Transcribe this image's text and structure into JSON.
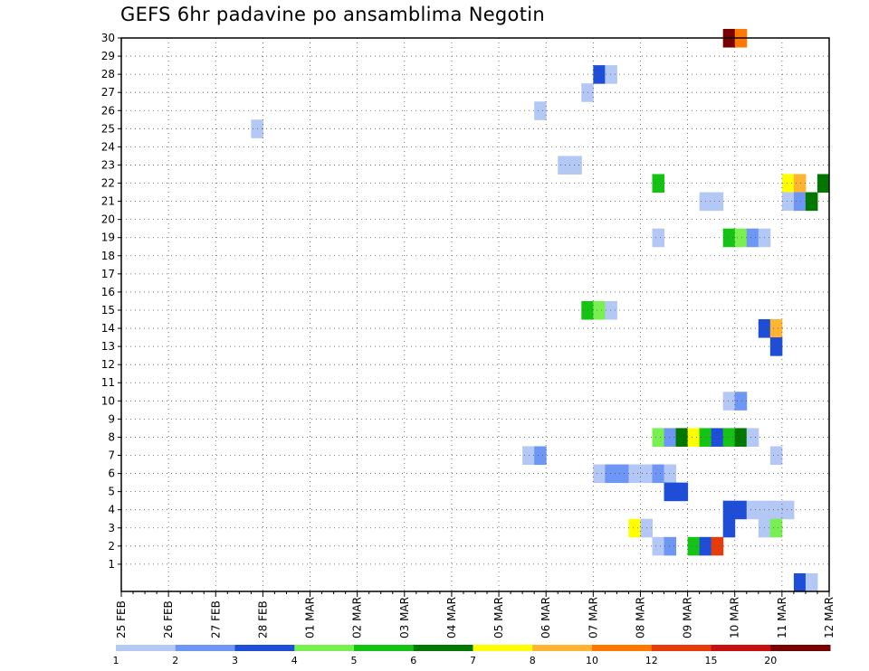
{
  "chart_data": {
    "type": "heatmap",
    "title": "GEFS 6hr padavine po ansamblima Negotin",
    "x_ticks": [
      "25 FEB",
      "26 FEB",
      "27 FEB",
      "28 FEB",
      "01 MAR",
      "02 MAR",
      "03 MAR",
      "04 MAR",
      "05 MAR",
      "06 MAR",
      "07 MAR",
      "08 MAR",
      "09 MAR",
      "10 MAR",
      "11 MAR",
      "12 MAR"
    ],
    "x_range_days": [
      0,
      15
    ],
    "y_ticks": [
      1,
      2,
      3,
      4,
      5,
      6,
      7,
      8,
      9,
      10,
      11,
      12,
      13,
      14,
      15,
      16,
      17,
      18,
      19,
      20,
      21,
      22,
      23,
      24,
      25,
      26,
      27,
      28,
      29,
      30
    ],
    "y_range": [
      0,
      30
    ],
    "grid": true,
    "colorbar": {
      "labels": [
        "1",
        "2",
        "3",
        "4",
        "5",
        "6",
        "7",
        "8",
        "10",
        "12",
        "15",
        "20"
      ],
      "colors": [
        "#b4c8f5",
        "#6e96f5",
        "#1e4ed8",
        "#78f050",
        "#14c314",
        "#007800",
        "#ffff00",
        "#ffb432",
        "#ff7800",
        "#e63c0a",
        "#c80f0f",
        "#780000"
      ]
    },
    "cells": [
      {
        "member": 30,
        "day": 12.75,
        "color": "#780000"
      },
      {
        "member": 30,
        "day": 13.0,
        "color": "#ff7800"
      },
      {
        "member": 28,
        "day": 10.0,
        "color": "#1e4ed8"
      },
      {
        "member": 28,
        "day": 10.25,
        "color": "#b4c8f5"
      },
      {
        "member": 27,
        "day": 9.75,
        "color": "#b4c8f5"
      },
      {
        "member": 26,
        "day": 8.75,
        "color": "#b4c8f5"
      },
      {
        "member": 25,
        "day": 2.75,
        "color": "#b4c8f5"
      },
      {
        "member": 23,
        "day": 9.25,
        "color": "#b4c8f5"
      },
      {
        "member": 23,
        "day": 9.5,
        "color": "#b4c8f5"
      },
      {
        "member": 22,
        "day": 11.25,
        "color": "#14c314"
      },
      {
        "member": 22,
        "day": 14.0,
        "color": "#ffff00"
      },
      {
        "member": 22,
        "day": 14.25,
        "color": "#ffb432"
      },
      {
        "member": 22,
        "day": 14.75,
        "color": "#007800"
      },
      {
        "member": 21,
        "day": 12.25,
        "color": "#b4c8f5"
      },
      {
        "member": 21,
        "day": 12.5,
        "color": "#b4c8f5"
      },
      {
        "member": 21,
        "day": 14.0,
        "color": "#b4c8f5"
      },
      {
        "member": 21,
        "day": 14.25,
        "color": "#6e96f5"
      },
      {
        "member": 21,
        "day": 14.5,
        "color": "#007800"
      },
      {
        "member": 19,
        "day": 11.25,
        "color": "#b4c8f5"
      },
      {
        "member": 19,
        "day": 12.75,
        "color": "#14c314"
      },
      {
        "member": 19,
        "day": 13.0,
        "color": "#78f050"
      },
      {
        "member": 19,
        "day": 13.25,
        "color": "#6e96f5"
      },
      {
        "member": 19,
        "day": 13.5,
        "color": "#b4c8f5"
      },
      {
        "member": 15,
        "day": 9.75,
        "color": "#14c314"
      },
      {
        "member": 15,
        "day": 10.0,
        "color": "#78f050"
      },
      {
        "member": 15,
        "day": 10.25,
        "color": "#b4c8f5"
      },
      {
        "member": 14,
        "day": 13.5,
        "color": "#1e4ed8"
      },
      {
        "member": 14,
        "day": 13.75,
        "color": "#ffb432"
      },
      {
        "member": 13,
        "day": 13.75,
        "color": "#1e4ed8"
      },
      {
        "member": 10,
        "day": 12.75,
        "color": "#b4c8f5"
      },
      {
        "member": 10,
        "day": 13.0,
        "color": "#6e96f5"
      },
      {
        "member": 8,
        "day": 11.25,
        "color": "#78f050"
      },
      {
        "member": 8,
        "day": 11.5,
        "color": "#6e96f5"
      },
      {
        "member": 8,
        "day": 11.75,
        "color": "#007800"
      },
      {
        "member": 8,
        "day": 12.0,
        "color": "#ffff00"
      },
      {
        "member": 8,
        "day": 12.25,
        "color": "#14c314"
      },
      {
        "member": 8,
        "day": 12.5,
        "color": "#1e4ed8"
      },
      {
        "member": 8,
        "day": 12.75,
        "color": "#14c314"
      },
      {
        "member": 8,
        "day": 13.0,
        "color": "#007800"
      },
      {
        "member": 8,
        "day": 13.25,
        "color": "#b4c8f5"
      },
      {
        "member": 7,
        "day": 8.5,
        "color": "#b4c8f5"
      },
      {
        "member": 7,
        "day": 8.75,
        "color": "#6e96f5"
      },
      {
        "member": 7,
        "day": 13.75,
        "color": "#b4c8f5"
      },
      {
        "member": 6,
        "day": 10.0,
        "color": "#b4c8f5"
      },
      {
        "member": 6,
        "day": 10.25,
        "color": "#6e96f5"
      },
      {
        "member": 6,
        "day": 10.5,
        "color": "#6e96f5"
      },
      {
        "member": 6,
        "day": 10.75,
        "color": "#b4c8f5"
      },
      {
        "member": 6,
        "day": 11.0,
        "color": "#b4c8f5"
      },
      {
        "member": 6,
        "day": 11.25,
        "color": "#6e96f5"
      },
      {
        "member": 6,
        "day": 11.5,
        "color": "#b4c8f5"
      },
      {
        "member": 5,
        "day": 11.5,
        "color": "#1e4ed8"
      },
      {
        "member": 5,
        "day": 11.75,
        "color": "#1e4ed8"
      },
      {
        "member": 4,
        "day": 12.75,
        "color": "#1e4ed8"
      },
      {
        "member": 4,
        "day": 13.0,
        "color": "#1e4ed8"
      },
      {
        "member": 4,
        "day": 13.25,
        "color": "#b4c8f5"
      },
      {
        "member": 4,
        "day": 13.5,
        "color": "#b4c8f5"
      },
      {
        "member": 4,
        "day": 13.75,
        "color": "#b4c8f5"
      },
      {
        "member": 4,
        "day": 14.0,
        "color": "#b4c8f5"
      },
      {
        "member": 3,
        "day": 10.75,
        "color": "#ffff00"
      },
      {
        "member": 3,
        "day": 11.0,
        "color": "#b4c8f5"
      },
      {
        "member": 3,
        "day": 12.75,
        "color": "#1e4ed8"
      },
      {
        "member": 3,
        "day": 13.5,
        "color": "#b4c8f5"
      },
      {
        "member": 3,
        "day": 13.75,
        "color": "#78f050"
      },
      {
        "member": 2,
        "day": 11.25,
        "color": "#b4c8f5"
      },
      {
        "member": 2,
        "day": 11.5,
        "color": "#6e96f5"
      },
      {
        "member": 2,
        "day": 12.0,
        "color": "#14c314"
      },
      {
        "member": 2,
        "day": 12.25,
        "color": "#1e4ed8"
      },
      {
        "member": 2,
        "day": 12.5,
        "color": "#e63c0a"
      },
      {
        "member": 0,
        "day": 14.25,
        "color": "#1e4ed8"
      },
      {
        "member": 0,
        "day": 14.5,
        "color": "#b4c8f5"
      }
    ]
  }
}
